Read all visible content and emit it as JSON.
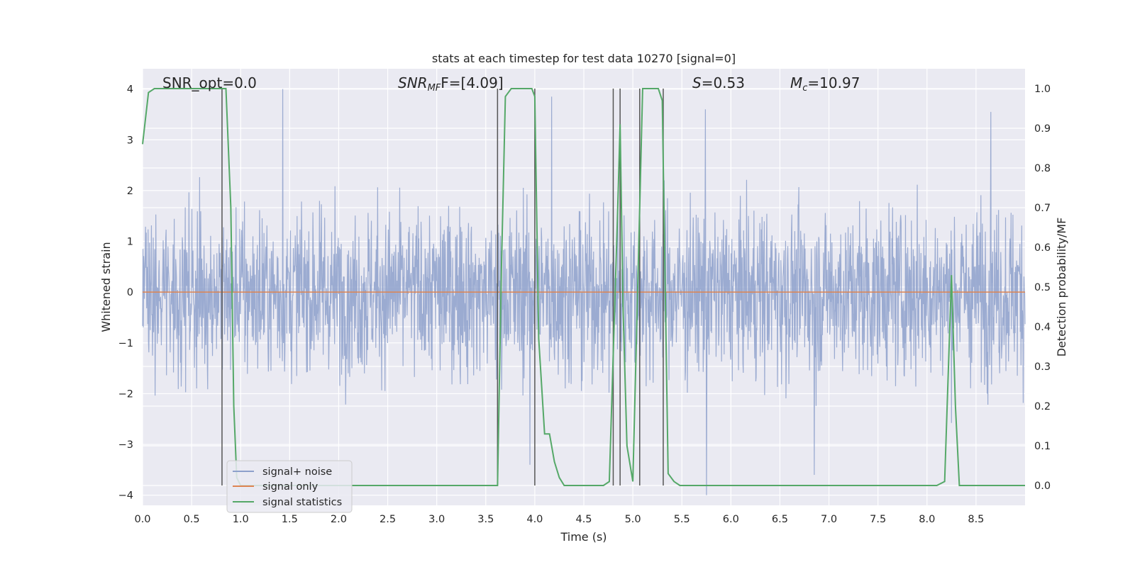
{
  "chart_data": {
    "type": "line",
    "title": "stats at each timestep for test data 10270 [signal=0]",
    "xlabel": "Time (s)",
    "ylabel": "Whitened strain",
    "y2label": "Detection probability/MF",
    "xlim": [
      0.0,
      9.0
    ],
    "ylim": [
      -4.2,
      4.4
    ],
    "y2lim": [
      -0.05,
      1.05
    ],
    "xticks": [
      0.0,
      0.5,
      1.0,
      1.5,
      2.0,
      2.5,
      3.0,
      3.5,
      4.0,
      4.5,
      5.0,
      5.5,
      6.0,
      6.5,
      7.0,
      7.5,
      8.0,
      8.5
    ],
    "xtick_labels": [
      "0.0",
      "0.5",
      "1.0",
      "1.5",
      "2.0",
      "2.5",
      "3.0",
      "3.5",
      "4.0",
      "4.5",
      "5.0",
      "5.5",
      "6.0",
      "6.5",
      "7.0",
      "7.5",
      "8.0",
      "8.5"
    ],
    "yticks": [
      4,
      3,
      2,
      1,
      0,
      -1,
      -2,
      -3,
      -4
    ],
    "ytick_labels": [
      "4",
      "3",
      "2",
      "1",
      "0",
      "−1",
      "−2",
      "−3",
      "−4"
    ],
    "y2ticks": [
      1.0,
      0.9,
      0.8,
      0.7,
      0.6,
      0.5,
      0.4,
      0.3,
      0.2,
      0.1,
      0.0
    ],
    "y2tick_labels": [
      "1.0",
      "0.9",
      "0.8",
      "0.7",
      "0.6",
      "0.5",
      "0.4",
      "0.3",
      "0.2",
      "0.1",
      "0.0"
    ],
    "grid": true,
    "legend": "lower-left",
    "series": [
      {
        "name": "signal+ noise",
        "axis": "left",
        "color": "#8da0cb",
        "note": "dense whitened noise filling roughly -2.5 to +2.5 with spikes to about +/-4",
        "envelope_typical": [
          -2.5,
          2.5
        ],
        "max_spikes": [
          {
            "x": 1.43,
            "y": 4.0
          },
          {
            "x": 4.17,
            "y": 3.85
          },
          {
            "x": 5.74,
            "y": 3.6
          },
          {
            "x": 8.65,
            "y": 3.55
          },
          {
            "x": 3.95,
            "y": -3.4
          },
          {
            "x": 5.75,
            "y": -4.0
          },
          {
            "x": 6.85,
            "y": -3.6
          }
        ]
      },
      {
        "name": "signal only",
        "axis": "left",
        "color": "#dd8452",
        "x": [
          0.0,
          9.0
        ],
        "y": [
          0.0,
          0.0
        ]
      },
      {
        "name": "signal statistics",
        "axis": "right",
        "color": "#55a868",
        "x": [
          0.0,
          0.06,
          0.12,
          0.3,
          0.5,
          0.7,
          0.8,
          0.85,
          0.9,
          0.93,
          0.96,
          1.0,
          2.0,
          3.0,
          3.55,
          3.62,
          3.66,
          3.7,
          3.76,
          3.82,
          3.9,
          3.97,
          4.0,
          4.04,
          4.1,
          4.15,
          4.2,
          4.25,
          4.3,
          4.4,
          4.6,
          4.7,
          4.76,
          4.8,
          4.84,
          4.87,
          4.9,
          4.94,
          5.0,
          5.06,
          5.1,
          5.14,
          5.2,
          5.26,
          5.3,
          5.36,
          5.42,
          5.48,
          5.55,
          5.7,
          6.0,
          7.0,
          8.0,
          8.1,
          8.18,
          8.25,
          8.29,
          8.33,
          8.5,
          8.7,
          9.0
        ],
        "y": [
          0.86,
          0.99,
          1.0,
          1.0,
          1.0,
          1.0,
          1.0,
          1.0,
          0.7,
          0.2,
          0.02,
          0.0,
          0.0,
          0.0,
          0.0,
          0.0,
          0.55,
          0.98,
          1.0,
          1.0,
          1.0,
          1.0,
          0.98,
          0.37,
          0.13,
          0.13,
          0.06,
          0.02,
          0.0,
          0.0,
          0.0,
          0.0,
          0.01,
          0.33,
          0.65,
          0.91,
          0.45,
          0.1,
          0.01,
          0.6,
          1.0,
          1.0,
          1.0,
          1.0,
          0.97,
          0.03,
          0.01,
          0.0,
          0.0,
          0.0,
          0.0,
          0.0,
          0.0,
          0.0,
          0.01,
          0.53,
          0.2,
          0.0,
          0.0,
          0.0,
          0.0
        ]
      }
    ],
    "vertical_lines": {
      "color": "#555555",
      "x": [
        0.81,
        3.62,
        4.0,
        4.8,
        4.87,
        5.07,
        5.31
      ]
    },
    "annotations": {
      "snr_opt": "SNR_opt=0.0",
      "snr_mf_main": "SNR",
      "snr_mf_sub": "MF",
      "snr_mf_rest": "F=[4.09]",
      "s_label": "S",
      "s_rest": "=0.53",
      "mc_label": "M",
      "mc_sub": "c",
      "mc_rest": "=10.97"
    },
    "colors": {
      "plot_background": "#eaeaf2",
      "grid": "#ffffff",
      "noise": "#8da0cb",
      "signal_only": "#dd8452",
      "statistics": "#55a868"
    }
  }
}
